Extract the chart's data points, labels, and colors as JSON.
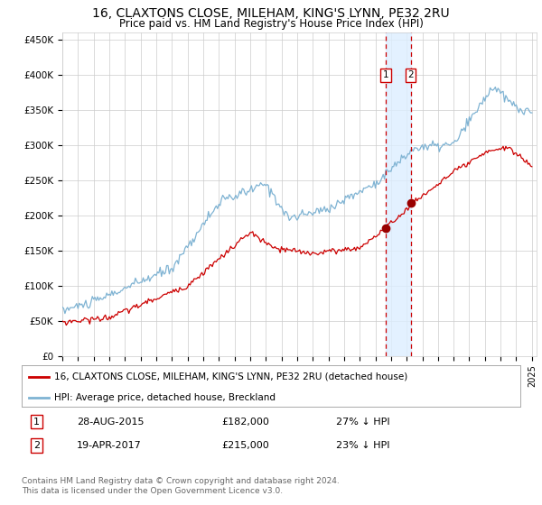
{
  "title": "16, CLAXTONS CLOSE, MILEHAM, KING'S LYNN, PE32 2RU",
  "subtitle": "Price paid vs. HM Land Registry's House Price Index (HPI)",
  "title_fontsize": 10,
  "subtitle_fontsize": 8.5,
  "ylabel_ticks": [
    "£0",
    "£50K",
    "£100K",
    "£150K",
    "£200K",
    "£250K",
    "£300K",
    "£350K",
    "£400K",
    "£450K"
  ],
  "ytick_values": [
    0,
    50000,
    100000,
    150000,
    200000,
    250000,
    300000,
    350000,
    400000,
    450000
  ],
  "ylim": [
    0,
    460000
  ],
  "xlim_start": 1995.0,
  "xlim_end": 2025.3,
  "marker1_x": 2015.65,
  "marker2_x": 2017.25,
  "transaction1_date": "28-AUG-2015",
  "transaction1_price": "£182,000",
  "transaction1_hpi": "27% ↓ HPI",
  "transaction2_date": "19-APR-2017",
  "transaction2_price": "£215,000",
  "transaction2_hpi": "23% ↓ HPI",
  "legend_label_red": "16, CLAXTONS CLOSE, MILEHAM, KING'S LYNN, PE32 2RU (detached house)",
  "legend_label_blue": "HPI: Average price, detached house, Breckland",
  "footer_line1": "Contains HM Land Registry data © Crown copyright and database right 2024.",
  "footer_line2": "This data is licensed under the Open Government Licence v3.0.",
  "red_color": "#cc0000",
  "blue_color": "#7fb3d3",
  "shade_color": "#ddeeff",
  "grid_color": "#cccccc",
  "bg_color": "#ffffff"
}
